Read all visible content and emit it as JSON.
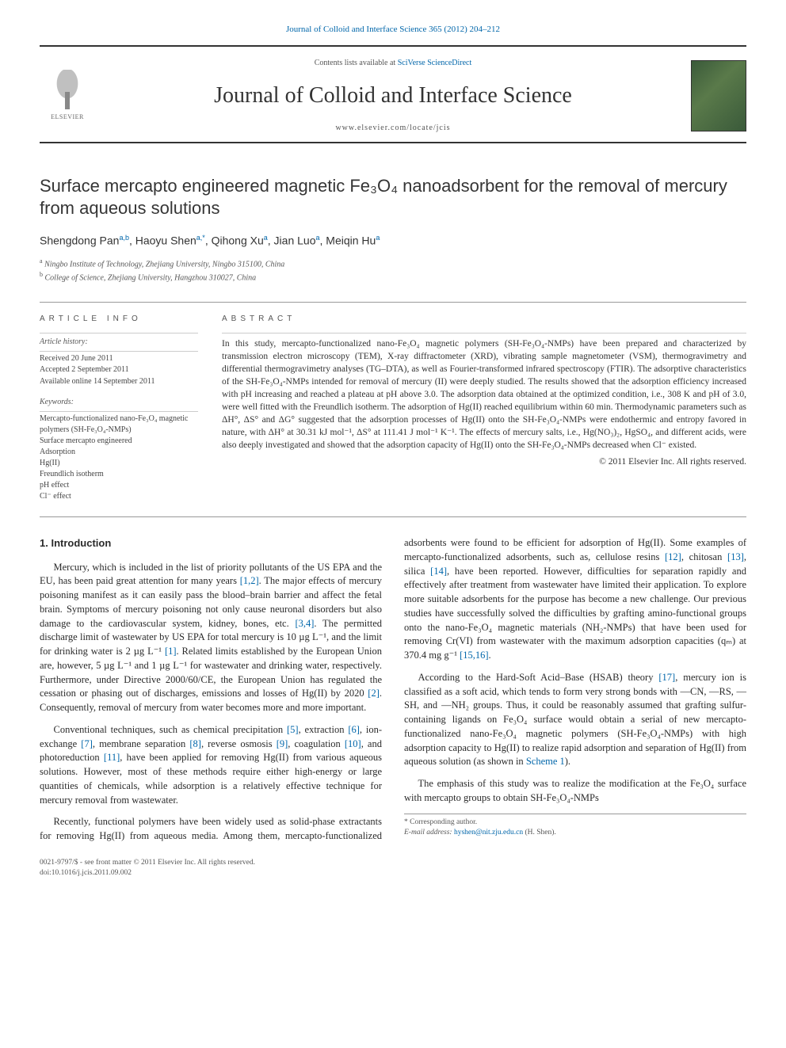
{
  "citation": "Journal of Colloid and Interface Science 365 (2012) 204–212",
  "publisher_logo_text": "ELSEVIER",
  "contents_line_prefix": "Contents lists available at ",
  "contents_line_link": "SciVerse ScienceDirect",
  "journal_name": "Journal of Colloid and Interface Science",
  "journal_url": "www.elsevier.com/locate/jcis",
  "title": "Surface mercapto engineered magnetic Fe₃O₄ nanoadsorbent for the removal of mercury from aqueous solutions",
  "authors_html": "Shengdong Pan<sup>a,b</sup>, Haoyu Shen<sup>a,*</sup>, Qihong Xu<sup>a</sup>, Jian Luo<sup>a</sup>, Meiqin Hu<sup>a</sup>",
  "affiliations": [
    {
      "sup": "a",
      "text": "Ningbo Institute of Technology, Zhejiang University, Ningbo 315100, China"
    },
    {
      "sup": "b",
      "text": "College of Science, Zhejiang University, Hangzhou 310027, China"
    }
  ],
  "article_info_heading": "article info",
  "abstract_heading": "abstract",
  "history_label": "Article history:",
  "history": [
    "Received 20 June 2011",
    "Accepted 2 September 2011",
    "Available online 14 September 2011"
  ],
  "keywords_label": "Keywords:",
  "keywords": [
    "Mercapto-functionalized nano-Fe₃O₄ magnetic polymers (SH-Fe₃O₄-NMPs)",
    "Surface mercapto engineered",
    "Adsorption",
    "Hg(II)",
    "Freundlich isotherm",
    "pH effect",
    "Cl⁻ effect"
  ],
  "abstract": "In this study, mercapto-functionalized nano-Fe₃O₄ magnetic polymers (SH-Fe₃O₄-NMPs) have been prepared and characterized by transmission electron microscopy (TEM), X-ray diffractometer (XRD), vibrating sample magnetometer (VSM), thermogravimetry and differential thermogravimetry analyses (TG–DTA), as well as Fourier-transformed infrared spectroscopy (FTIR). The adsorptive characteristics of the SH-Fe₃O₄-NMPs intended for removal of mercury (II) were deeply studied. The results showed that the adsorption efficiency increased with pH increasing and reached a plateau at pH above 3.0. The adsorption data obtained at the optimized condition, i.e., 308 K and pH of 3.0, were well fitted with the Freundlich isotherm. The adsorption of Hg(II) reached equilibrium within 60 min. Thermodynamic parameters such as ΔH°, ΔS° and ΔG° suggested that the adsorption processes of Hg(II) onto the SH-Fe₃O₄-NMPs were endothermic and entropy favored in nature, with ΔH° at 30.31 kJ mol⁻¹, ΔS° at 111.41 J mol⁻¹ K⁻¹. The effects of mercury salts, i.e., Hg(NO₃)₂, HgSO₄, and different acids, were also deeply investigated and showed that the adsorption capacity of Hg(II) onto the SH-Fe₃O₄-NMPs decreased when Cl⁻ existed.",
  "copyright": "© 2011 Elsevier Inc. All rights reserved.",
  "section1_heading": "1. Introduction",
  "paragraphs": {
    "p1a": "Mercury, which is included in the list of priority pollutants of the US EPA and the EU, has been paid great attention for many years ",
    "p1_ref1": "[1,2]",
    "p1b": ". The major effects of mercury poisoning manifest as it can easily pass the blood–brain barrier and affect the fetal brain. Symptoms of mercury poisoning not only cause neuronal disorders but also damage to the cardiovascular system, kidney, bones, etc. ",
    "p1_ref2": "[3,4]",
    "p1c": ". The permitted discharge limit of wastewater by US EPA for total mercury is 10 µg L⁻¹, and the limit for drinking water is 2 µg L⁻¹ ",
    "p1_ref3": "[1]",
    "p1d": ". Related limits established by the European Union are, however, 5 µg L⁻¹ and 1 µg L⁻¹ for wastewater and drinking water, respectively. Furthermore, under Directive 2000/60/CE, the European Union has regulated the cessation or phasing out of discharges, emissions and losses of Hg(II) by 2020 ",
    "p1_ref4": "[2]",
    "p1e": ". Consequently, removal of mercury from water becomes more and more important.",
    "p2a": "Conventional techniques, such as chemical precipitation ",
    "p2_r5": "[5]",
    "p2b": ", extraction ",
    "p2_r6": "[6]",
    "p2c": ", ion-exchange ",
    "p2_r7": "[7]",
    "p2d": ", membrane separation ",
    "p2_r8": "[8]",
    "p2e": ", reverse osmosis ",
    "p2_r9": "[9]",
    "p2f": ", coagulation ",
    "p2_r10": "[10]",
    "p2g": ", and photoreduction ",
    "p2_r11": "[11]",
    "p2h": ", have been applied for removing Hg(II) from various aqueous solutions. However, most of these methods require either high-energy or large ",
    "p2i": "quantities of chemicals, while adsorption is a relatively effective technique for mercury removal from wastewater.",
    "p3a": "Recently, functional polymers have been widely used as solid-phase extractants for removing Hg(II) from aqueous media. Among them, mercapto-functionalized adsorbents were found to be efficient for adsorption of Hg(II). Some examples of mercapto-functionalized adsorbents, such as, cellulose resins ",
    "p3_r12": "[12]",
    "p3b": ", chitosan ",
    "p3_r13": "[13]",
    "p3c": ", silica ",
    "p3_r14": "[14]",
    "p3d": ", have been reported. However, difficulties for separation rapidly and effectively after treatment from wastewater have limited their application. To explore more suitable adsorbents for the purpose has become a new challenge. Our previous studies have successfully solved the difficulties by grafting amino-functional groups onto the nano-Fe₃O₄ magnetic materials (NH₂-NMPs) that have been used for removing Cr(VI) from wastewater with the maximum adsorption capacities (qₘ) at 370.4 mg g⁻¹ ",
    "p3_r15": "[15,16]",
    "p3e": ".",
    "p4a": "According to the Hard-Soft Acid–Base (HSAB) theory ",
    "p4_r17": "[17]",
    "p4b": ", mercury ion is classified as a soft acid, which tends to form very strong bonds with —CN, —RS, —SH, and —NH₂ groups. Thus, it could be reasonably assumed that grafting sulfur-containing ligands on Fe₃O₄ surface would obtain a serial of new mercapto-functionalized nano-Fe₃O₄ magnetic polymers (SH-Fe₃O₄-NMPs) with high adsorption capacity to Hg(II) to realize rapid adsorption and separation of Hg(II) from aqueous solution (as shown in ",
    "p4_scheme": "Scheme 1",
    "p4c": ").",
    "p5": "The emphasis of this study was to realize the modification at the Fe₃O₄ surface with mercapto groups to obtain SH-Fe₃O₄-NMPs"
  },
  "footnote_marker": "* Corresponding author.",
  "footnote_email_label": "E-mail address:",
  "footnote_email": "hyshen@nit.zju.edu.cn",
  "footnote_email_who": "(H. Shen).",
  "footer_line1": "0021-9797/$ - see front matter © 2011 Elsevier Inc. All rights reserved.",
  "footer_line2": "doi:10.1016/j.jcis.2011.09.002",
  "colors": {
    "link": "#0066aa",
    "text": "#2a2a2a",
    "rule": "#999999",
    "bg": "#ffffff"
  }
}
